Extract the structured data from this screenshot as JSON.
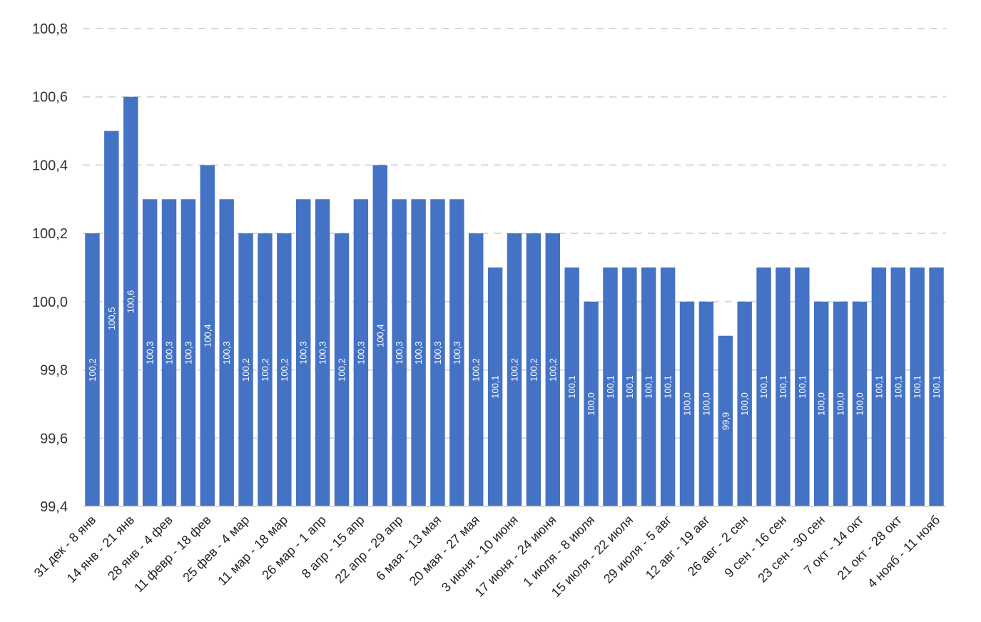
{
  "chart_data": {
    "type": "bar",
    "title": "",
    "xlabel": "",
    "ylabel": "",
    "ylim": [
      99.4,
      100.8
    ],
    "ytick_values": [
      99.4,
      99.6,
      99.8,
      100.0,
      100.2,
      100.4,
      100.6,
      100.8
    ],
    "ytick_labels": [
      "99,4",
      "99,6",
      "99,8",
      "100,0",
      "100,2",
      "100,4",
      "100,6",
      "100,8"
    ],
    "grid": "horizontal dashed",
    "bar_color": "#4472C4",
    "label_color": "#FFFFFF",
    "grid_color": "#D9D9D9",
    "categories": [
      "31 дек - 8 янв",
      "",
      "14 янв - 21 янв",
      "",
      "28 янв - 4 фев",
      "",
      "11 февр - 18 фев",
      "",
      "25 фев - 4 мар",
      "",
      "11 мар - 18 мар",
      "",
      "26 мар - 1 апр",
      "",
      "8 апр - 15 апр",
      "",
      "22 апр - 29 апр",
      "",
      "6 мая - 13 мая",
      "",
      "20 мая - 27 мая",
      "",
      "3 июня - 10 июня",
      "",
      "17 июня - 24 июня",
      "",
      "1 июля - 8 июля",
      "",
      "15 июля - 22 июля",
      "",
      "29 июля - 5 авг",
      "",
      "12 авг - 19 авг",
      "",
      "26 авг - 2 сен",
      "",
      "9 сен - 16 сен",
      "",
      "23 сен - 30 сен",
      "",
      "7 окт - 14 окт",
      "",
      "21 окт - 28 окт",
      "",
      "4 нояб - 11 нояб"
    ],
    "values": [
      100.2,
      100.5,
      100.6,
      100.3,
      100.3,
      100.3,
      100.4,
      100.3,
      100.2,
      100.2,
      100.2,
      100.3,
      100.3,
      100.2,
      100.3,
      100.4,
      100.3,
      100.3,
      100.3,
      100.3,
      100.2,
      100.1,
      100.2,
      100.2,
      100.2,
      100.1,
      100.0,
      100.1,
      100.1,
      100.1,
      100.1,
      100.0,
      100.0,
      99.9,
      100.0,
      100.1,
      100.1,
      100.1,
      100.0,
      100.0,
      100.0,
      100.1,
      100.1,
      100.1,
      100.1
    ],
    "data_labels": [
      "100,2",
      "100,5",
      "100,6",
      "100,3",
      "100,3",
      "100,3",
      "100,4",
      "100,3",
      "100,2",
      "100,2",
      "100,2",
      "100,3",
      "100,3",
      "100,2",
      "100,3",
      "100,4",
      "100,3",
      "100,3",
      "100,3",
      "100,3",
      "100,2",
      "100,1",
      "100,2",
      "100,2",
      "100,2",
      "100,1",
      "100,0",
      "100,1",
      "100,1",
      "100,1",
      "100,1",
      "100,0",
      "100,0",
      "99,9",
      "100,0",
      "100,1",
      "100,1",
      "100,1",
      "100,0",
      "100,0",
      "100,0",
      "100,1",
      "100,1",
      "100,1",
      "100,1"
    ]
  }
}
